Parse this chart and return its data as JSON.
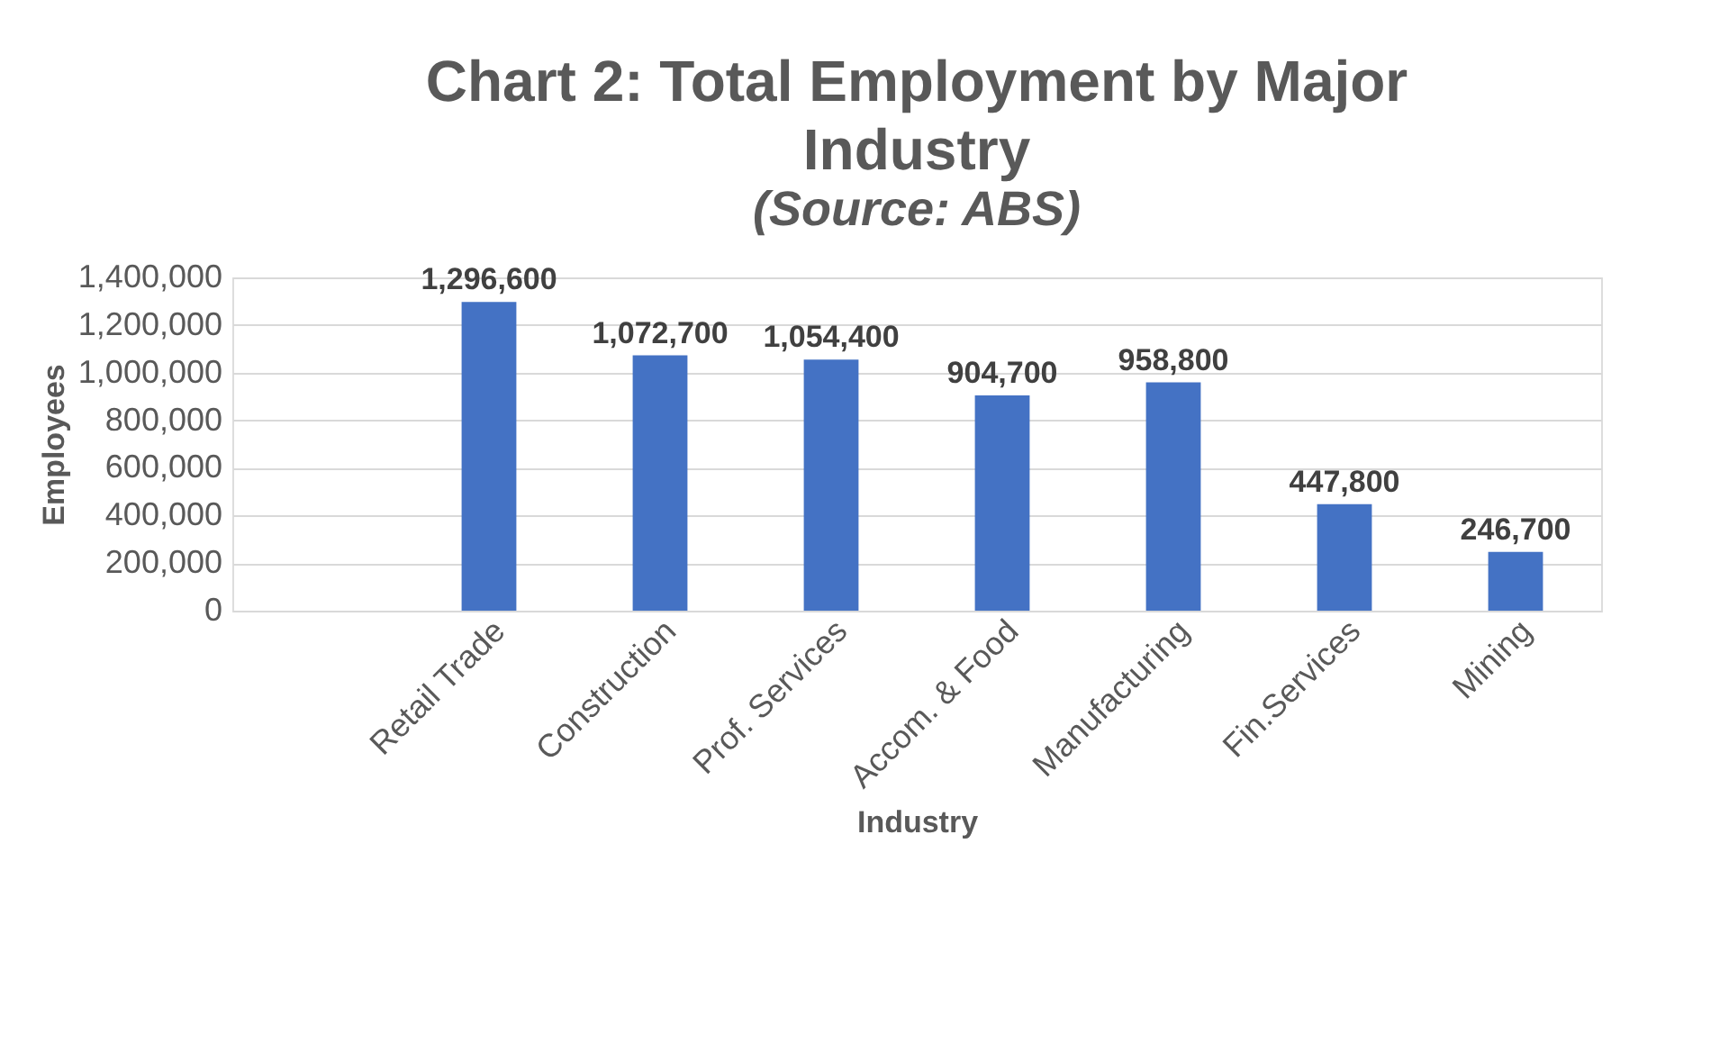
{
  "chart_data": {
    "type": "bar",
    "title": "Chart 2: Total Employment by Major Industry",
    "subtitle": "(Source: ABS)",
    "xlabel": "Industry",
    "ylabel": "Employees",
    "categories": [
      null,
      "Retail Trade",
      "Construction",
      "Prof. Services",
      "Accom. & Food",
      "Manufacturing",
      "Fin.Services",
      "Mining"
    ],
    "values": [
      null,
      1296600,
      1072700,
      1054400,
      904700,
      958800,
      447800,
      246700
    ],
    "value_labels": [
      null,
      "1,296,600",
      "1,072,700",
      "1,054,400",
      "904,700",
      "958,800",
      "447,800",
      "246,700"
    ],
    "color": "#4472c4",
    "ylim": [
      0,
      1400000
    ],
    "yticks": [
      0,
      {
        "value": 200000,
        "label": "200,000"
      },
      {
        "value": 400000,
        "label": "400,000"
      },
      {
        "value": 600000,
        "label": "600,000"
      },
      {
        "value": 800000,
        "label": "800,000"
      },
      {
        "value": 1000000,
        "label": "1,000,000"
      },
      {
        "value": 1200000,
        "label": "1,200,000"
      },
      {
        "value": 1400000,
        "label": "1,400,000"
      }
    ],
    "grid": "y"
  }
}
